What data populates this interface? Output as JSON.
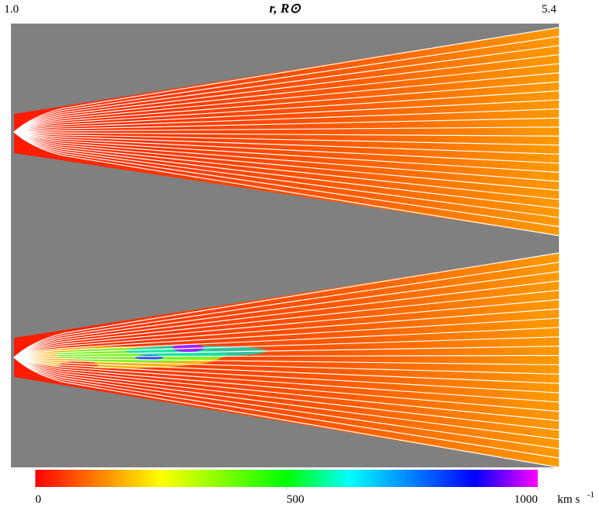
{
  "chart_data": {
    "type": "field",
    "title": "r, R⊙",
    "xlim": [
      1.0,
      5.4
    ],
    "xticks": [
      {
        "value": 1.0,
        "label": "1.0"
      },
      5.4
    ],
    "colorbar": {
      "clim": [
        0,
        1000
      ],
      "ticks": [
        0,
        500,
        1000
      ],
      "unit": "km s",
      "unit_power": "-1",
      "colormap": [
        "#ff0000",
        "#ff8000",
        "#ffff00",
        "#80ff00",
        "#00ff00",
        "#00ffff",
        "#0080ff",
        "#0000ff",
        "#ff00ff"
      ]
    },
    "background": "#808080"
  }
}
